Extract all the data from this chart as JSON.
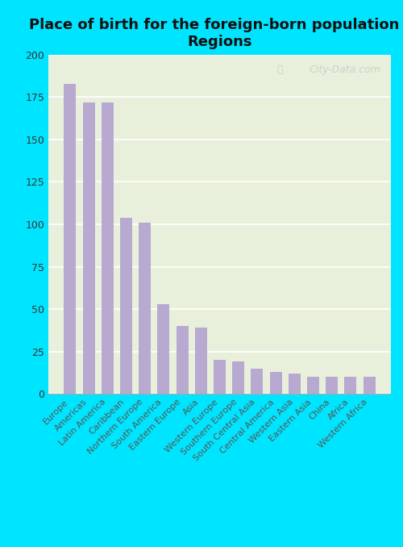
{
  "title": "Place of birth for the foreign-born population -\nRegions",
  "categories": [
    "Europe",
    "Americas",
    "Latin America",
    "Caribbean",
    "Northern Europe",
    "South America",
    "Eastern Europe",
    "Asia",
    "Western Europe",
    "Southern Europe",
    "South Central Asia",
    "Central America",
    "Western Asia",
    "Eastern Asia",
    "China",
    "Africa",
    "Western Africa"
  ],
  "values": [
    183,
    172,
    172,
    104,
    101,
    53,
    40,
    39,
    20,
    19,
    15,
    13,
    12,
    10,
    10,
    10,
    10
  ],
  "bar_color": "#b8a9d0",
  "background_color_outer": "#00e5ff",
  "background_color_plot_tl": "#e8f0dc",
  "background_color_plot_br": "#f5f8ee",
  "ylim": [
    0,
    200
  ],
  "yticks": [
    0,
    25,
    50,
    75,
    100,
    125,
    150,
    175,
    200
  ],
  "title_fontsize": 13,
  "tick_label_fontsize": 8.0,
  "watermark": "City-Data.com"
}
